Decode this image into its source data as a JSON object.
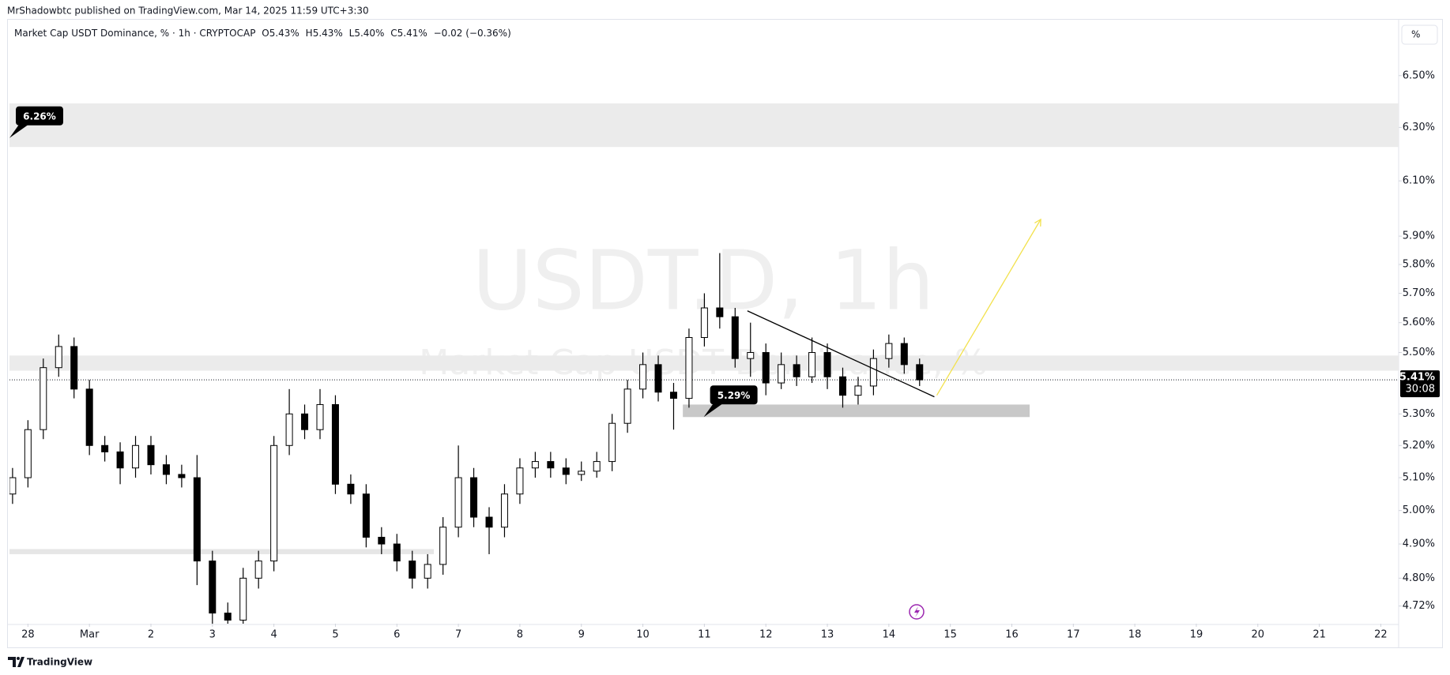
{
  "header": {
    "published": "MrShadowbtc published on TradingView.com, Mar 14, 2025 11:59 UTC+3:30"
  },
  "chart_data": {
    "type": "candlestick",
    "symbol": "Market Cap USDT Dominance, % · 1h · CRYPTOCAP",
    "ohlc_legend": [
      "O5.43%",
      "H5.43%",
      "L5.40%",
      "C5.41%",
      "−0.02 (−0.36%)"
    ],
    "watermark": [
      "USDT.D, 1h",
      "Market Cap USDT Dominance, %"
    ],
    "x": [
      -0.25,
      0,
      0.25,
      0.5,
      0.75,
      1,
      1.25,
      1.5,
      1.75,
      2,
      2.25,
      2.5,
      2.75,
      3,
      3.25,
      3.5,
      3.75,
      4,
      4.25,
      4.5,
      4.75,
      5,
      5.25,
      5.5,
      5.75,
      6,
      6.25,
      6.5,
      6.75,
      7,
      7.25,
      7.5,
      7.75,
      8,
      8.25,
      8.5,
      8.75,
      9,
      9.25,
      9.5,
      9.75,
      10,
      10.25,
      10.5,
      10.75,
      11,
      11.25,
      11.5,
      11.75,
      12,
      12.25,
      12.5,
      12.75,
      13,
      13.25,
      13.5,
      13.75,
      14,
      14.25,
      14.5
    ],
    "open": [
      5.05,
      5.1,
      5.25,
      5.45,
      5.52,
      5.38,
      5.2,
      5.18,
      5.13,
      5.2,
      5.14,
      5.11,
      5.1,
      4.85,
      4.7,
      4.68,
      4.8,
      4.85,
      5.2,
      5.3,
      5.25,
      5.33,
      5.08,
      5.05,
      4.92,
      4.9,
      4.85,
      4.8,
      4.84,
      4.95,
      5.1,
      4.98,
      4.95,
      5.05,
      5.13,
      5.15,
      5.13,
      5.11,
      5.12,
      5.15,
      5.27,
      5.38,
      5.46,
      5.37,
      5.35,
      5.55,
      5.65,
      5.62,
      5.48,
      5.5,
      5.4,
      5.46,
      5.42,
      5.5,
      5.42,
      5.36,
      5.39,
      5.48,
      5.53,
      5.46
    ],
    "high": [
      5.13,
      5.28,
      5.48,
      5.56,
      5.55,
      5.41,
      5.23,
      5.21,
      5.23,
      5.23,
      5.17,
      5.14,
      5.17,
      4.88,
      4.73,
      4.83,
      4.88,
      5.23,
      5.38,
      5.33,
      5.38,
      5.36,
      5.11,
      5.08,
      4.95,
      4.93,
      4.88,
      4.87,
      4.98,
      5.2,
      5.13,
      5.01,
      5.08,
      5.16,
      5.18,
      5.18,
      5.16,
      5.15,
      5.18,
      5.3,
      5.41,
      5.5,
      5.49,
      5.4,
      5.58,
      5.7,
      5.84,
      5.65,
      5.6,
      5.53,
      5.5,
      5.49,
      5.55,
      5.53,
      5.45,
      5.42,
      5.51,
      5.56,
      5.55,
      5.48
    ],
    "low": [
      5.02,
      5.07,
      5.22,
      5.42,
      5.35,
      5.17,
      5.15,
      5.08,
      5.1,
      5.11,
      5.08,
      5.07,
      4.78,
      4.67,
      4.67,
      4.67,
      4.77,
      4.82,
      5.17,
      5.22,
      5.22,
      5.05,
      5.02,
      4.89,
      4.87,
      4.82,
      4.77,
      4.77,
      4.81,
      4.92,
      4.95,
      4.87,
      4.92,
      5.02,
      5.1,
      5.1,
      5.08,
      5.09,
      5.1,
      5.12,
      5.24,
      5.35,
      5.34,
      5.25,
      5.32,
      5.52,
      5.58,
      5.45,
      5.42,
      5.36,
      5.38,
      5.39,
      5.4,
      5.38,
      5.32,
      5.33,
      5.36,
      5.45,
      5.43,
      5.39
    ],
    "close": [
      5.1,
      5.25,
      5.45,
      5.52,
      5.38,
      5.2,
      5.18,
      5.13,
      5.2,
      5.14,
      5.11,
      5.1,
      4.85,
      4.7,
      4.68,
      4.8,
      4.85,
      5.2,
      5.3,
      5.25,
      5.33,
      5.08,
      5.05,
      4.92,
      4.9,
      4.85,
      4.8,
      4.84,
      4.95,
      5.1,
      4.98,
      4.95,
      5.05,
      5.13,
      5.15,
      5.13,
      5.11,
      5.12,
      5.15,
      5.27,
      5.38,
      5.46,
      5.37,
      5.35,
      5.55,
      5.65,
      5.62,
      5.48,
      5.5,
      5.4,
      5.46,
      5.42,
      5.5,
      5.42,
      5.36,
      5.39,
      5.48,
      5.53,
      5.46,
      5.41
    ],
    "up_color": "#ffffff",
    "down_color": "#000000",
    "border_color": "#000000",
    "log_scale": true,
    "grid": false,
    "xlim": [
      -0.3,
      22.29
    ],
    "xticks": [
      {
        "value": 0,
        "label": "28"
      },
      {
        "value": 1,
        "label": "Mar"
      },
      2,
      3,
      4,
      5,
      6,
      7,
      8,
      9,
      10,
      11,
      12,
      13,
      14,
      15,
      16,
      17,
      18,
      19,
      20,
      21,
      22
    ],
    "ylim": [
      4.67,
      6.71
    ],
    "yticks": [
      {
        "value": 4.72,
        "label": "4.72%"
      },
      {
        "value": 4.8,
        "label": "4.80%"
      },
      {
        "value": 4.9,
        "label": "4.90%"
      },
      {
        "value": 5.0,
        "label": "5.00%"
      },
      {
        "value": 5.1,
        "label": "5.10%"
      },
      {
        "value": 5.2,
        "label": "5.20%"
      },
      {
        "value": 5.3,
        "label": "5.30%"
      },
      {
        "value": 5.5,
        "label": "5.50%"
      },
      {
        "value": 5.6,
        "label": "5.60%"
      },
      {
        "value": 5.7,
        "label": "5.70%"
      },
      {
        "value": 5.8,
        "label": "5.80%"
      },
      {
        "value": 5.9,
        "label": "5.90%"
      },
      {
        "value": 6.1,
        "label": "6.10%"
      },
      {
        "value": 6.3,
        "label": "6.30%"
      },
      {
        "value": 6.5,
        "label": "6.50%"
      }
    ],
    "last_price": {
      "value": 5.41,
      "label": "5.41%"
    },
    "countdown": "30:08",
    "zones": [
      {
        "x": [
          -0.3,
          22.29
        ],
        "y": [
          6.226,
          6.392
        ],
        "color": "#ebebeb"
      },
      {
        "x": [
          -0.3,
          22.29
        ],
        "y": [
          5.44,
          5.49
        ],
        "color": "#ebebeb"
      },
      {
        "x": [
          -0.3,
          6.6
        ],
        "y": [
          4.87,
          4.885
        ],
        "color": "#e6e6e6"
      },
      {
        "x": [
          10.65,
          16.29
        ],
        "y": [
          5.29,
          5.33
        ],
        "color": "#c8c8c8"
      }
    ],
    "annotations": [
      {
        "x": -0.3,
        "value": 6.26,
        "label": "6.26%"
      },
      {
        "x": 10.99,
        "value": 5.29,
        "label": "5.29%"
      }
    ],
    "drawings": [
      {
        "x": [
          11.7,
          14.74
        ],
        "y": [
          5.64,
          5.355
        ],
        "color": "#000000",
        "arrow": false
      },
      {
        "x": [
          14.78,
          16.47
        ],
        "y": [
          5.36,
          5.96
        ],
        "color": "#f2e14c",
        "arrow": true
      }
    ]
  },
  "ui": {
    "scale_button": "%"
  },
  "footer": {
    "brand": "TradingView"
  }
}
